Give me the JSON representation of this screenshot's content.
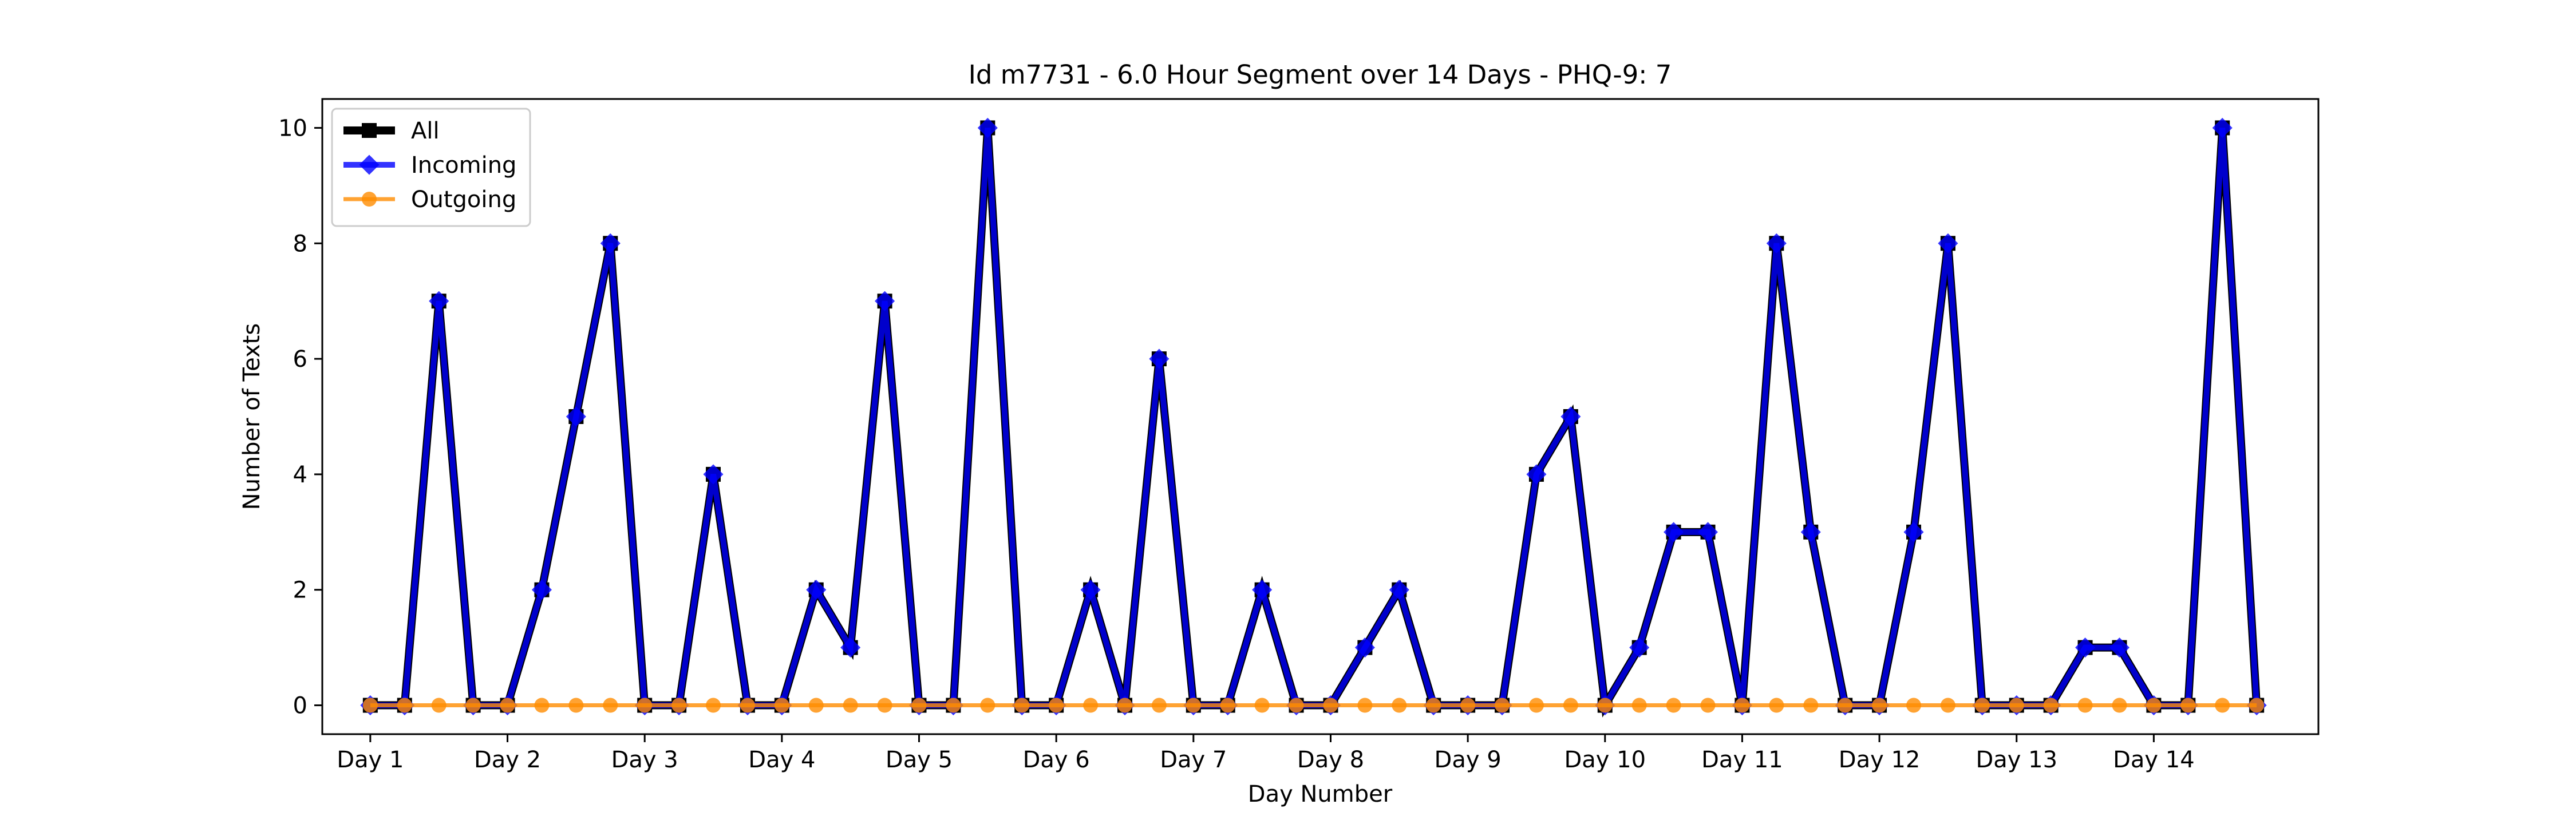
{
  "chart_data": {
    "type": "line",
    "title": "Id m7731 - 6.0 Hour Segment over 14 Days - PHQ-9: 7",
    "xlabel": "Day Number",
    "ylabel": "Number of Texts",
    "x_tick_labels": [
      "Day 1",
      "Day 2",
      "Day 3",
      "Day 4",
      "Day 5",
      "Day 6",
      "Day 7",
      "Day 8",
      "Day 9",
      "Day 10",
      "Day 11",
      "Day 12",
      "Day 13",
      "Day 14"
    ],
    "y_ticks": [
      0,
      2,
      4,
      6,
      8,
      10
    ],
    "ylim": [
      -0.5,
      10.5
    ],
    "grid": false,
    "legend_position": "top-left",
    "series": [
      {
        "name": "All",
        "color": "#000000",
        "marker": "square",
        "values": [
          0,
          0,
          7,
          0,
          0,
          2,
          5,
          8,
          0,
          0,
          4,
          0,
          0,
          2,
          1,
          7,
          0,
          0,
          10,
          0,
          0,
          2,
          0,
          6,
          0,
          0,
          2,
          0,
          0,
          1,
          2,
          0,
          0,
          0,
          4,
          5,
          0,
          1,
          3,
          3,
          0,
          8,
          3,
          0,
          0,
          3,
          8,
          0,
          0,
          0,
          1,
          1,
          0,
          0,
          10,
          0
        ]
      },
      {
        "name": "Incoming",
        "color": "#0000ff",
        "marker": "diamond",
        "values": [
          0,
          0,
          7,
          0,
          0,
          2,
          5,
          8,
          0,
          0,
          4,
          0,
          0,
          2,
          1,
          7,
          0,
          0,
          10,
          0,
          0,
          2,
          0,
          6,
          0,
          0,
          2,
          0,
          0,
          1,
          2,
          0,
          0,
          0,
          4,
          5,
          0,
          1,
          3,
          3,
          0,
          8,
          3,
          0,
          0,
          3,
          8,
          0,
          0,
          0,
          1,
          1,
          0,
          0,
          10,
          0
        ]
      },
      {
        "name": "Outgoing",
        "color": "#ff8c00",
        "marker": "circle",
        "values": [
          0,
          0,
          0,
          0,
          0,
          0,
          0,
          0,
          0,
          0,
          0,
          0,
          0,
          0,
          0,
          0,
          0,
          0,
          0,
          0,
          0,
          0,
          0,
          0,
          0,
          0,
          0,
          0,
          0,
          0,
          0,
          0,
          0,
          0,
          0,
          0,
          0,
          0,
          0,
          0,
          0,
          0,
          0,
          0,
          0,
          0,
          0,
          0,
          0,
          0,
          0,
          0,
          0,
          0,
          0,
          0
        ]
      }
    ]
  }
}
